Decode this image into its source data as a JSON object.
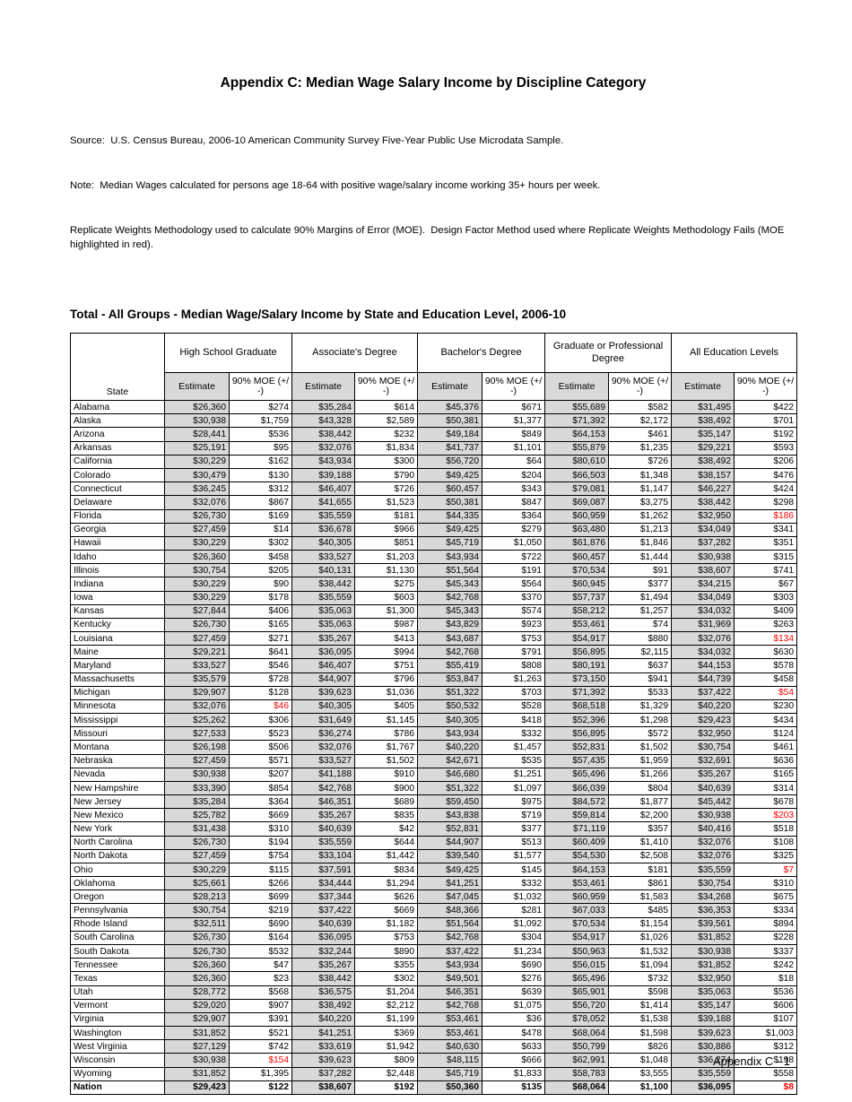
{
  "page": {
    "title": "Appendix C: Median Wage Salary Income by Discipline Category",
    "source_line": "Source:  U.S. Census Bureau, 2006-10 American Community Survey Five-Year Public Use Microdata Sample.",
    "note_line": "Note:  Median Wages calculated for persons age 18-64 with positive wage/salary income working 35+ hours per week.",
    "methodology_line": "Replicate Weights Methodology used to calculate 90% Margins of Error (MOE).  Design Factor Method used where Replicate Weights Methodology Fails (MOE highlighted in red).",
    "footer": "Appendix C - 1"
  },
  "colors": {
    "estimate_shading": "#d9d9d9",
    "failed_moe_red": "#ff0000"
  },
  "table": {
    "title": "Total - All Groups - Median Wage/Salary Income by State and Education Level, 2006-10",
    "state_header": "State",
    "group_headers": [
      "High School Graduate",
      "Associate's Degree",
      "Bachelor's Degree",
      "Graduate or Professional Degree",
      "All Education Levels"
    ],
    "sub_headers": {
      "estimate": "Estimate",
      "moe": "90% MOE (+/-)"
    },
    "rows": [
      {
        "state": "Alabama",
        "values": [
          "$26,360",
          "$274",
          "$35,284",
          "$614",
          "$45,376",
          "$671",
          "$55,689",
          "$582",
          "$31,495",
          "$422"
        ],
        "red": []
      },
      {
        "state": "Alaska",
        "values": [
          "$30,938",
          "$1,759",
          "$43,328",
          "$2,589",
          "$50,381",
          "$1,377",
          "$71,392",
          "$2,172",
          "$38,492",
          "$701"
        ],
        "red": []
      },
      {
        "state": "Arizona",
        "values": [
          "$28,441",
          "$536",
          "$38,442",
          "$232",
          "$49,184",
          "$849",
          "$64,153",
          "$461",
          "$35,147",
          "$192"
        ],
        "red": []
      },
      {
        "state": "Arkansas",
        "values": [
          "$25,191",
          "$95",
          "$32,076",
          "$1,834",
          "$41,737",
          "$1,101",
          "$55,879",
          "$1,235",
          "$29,221",
          "$593"
        ],
        "red": []
      },
      {
        "state": "California",
        "values": [
          "$30,229",
          "$162",
          "$43,934",
          "$300",
          "$56,720",
          "$64",
          "$80,610",
          "$726",
          "$38,492",
          "$206"
        ],
        "red": []
      },
      {
        "state": "Colorado",
        "values": [
          "$30,479",
          "$130",
          "$39,188",
          "$790",
          "$49,425",
          "$204",
          "$66,503",
          "$1,348",
          "$38,157",
          "$476"
        ],
        "red": []
      },
      {
        "state": "Connecticut",
        "values": [
          "$36,245",
          "$312",
          "$46,407",
          "$726",
          "$60,457",
          "$343",
          "$79,081",
          "$1,147",
          "$46,227",
          "$424"
        ],
        "red": []
      },
      {
        "state": "Delaware",
        "values": [
          "$32,076",
          "$867",
          "$41,655",
          "$1,523",
          "$50,381",
          "$847",
          "$69,087",
          "$3,275",
          "$38,442",
          "$298"
        ],
        "red": []
      },
      {
        "state": "Florida",
        "values": [
          "$26,730",
          "$169",
          "$35,559",
          "$181",
          "$44,335",
          "$364",
          "$60,959",
          "$1,262",
          "$32,950",
          "$186"
        ],
        "red": [
          9
        ]
      },
      {
        "state": "Georgia",
        "values": [
          "$27,459",
          "$14",
          "$36,678",
          "$966",
          "$49,425",
          "$279",
          "$63,480",
          "$1,213",
          "$34,049",
          "$341"
        ],
        "red": []
      },
      {
        "state": "Hawaii",
        "values": [
          "$30,229",
          "$302",
          "$40,305",
          "$851",
          "$45,719",
          "$1,050",
          "$61,876",
          "$1,846",
          "$37,282",
          "$351"
        ],
        "red": []
      },
      {
        "state": "Idaho",
        "values": [
          "$26,360",
          "$458",
          "$33,527",
          "$1,203",
          "$43,934",
          "$722",
          "$60,457",
          "$1,444",
          "$30,938",
          "$315"
        ],
        "red": []
      },
      {
        "state": "Illinois",
        "values": [
          "$30,754",
          "$205",
          "$40,131",
          "$1,130",
          "$51,564",
          "$191",
          "$70,534",
          "$91",
          "$38,607",
          "$741"
        ],
        "red": []
      },
      {
        "state": "Indiana",
        "values": [
          "$30,229",
          "$90",
          "$38,442",
          "$275",
          "$45,343",
          "$564",
          "$60,945",
          "$377",
          "$34,215",
          "$67"
        ],
        "red": []
      },
      {
        "state": "Iowa",
        "values": [
          "$30,229",
          "$178",
          "$35,559",
          "$603",
          "$42,768",
          "$370",
          "$57,737",
          "$1,494",
          "$34,049",
          "$303"
        ],
        "red": []
      },
      {
        "state": "Kansas",
        "values": [
          "$27,844",
          "$406",
          "$35,063",
          "$1,300",
          "$45,343",
          "$574",
          "$58,212",
          "$1,257",
          "$34,032",
          "$409"
        ],
        "red": []
      },
      {
        "state": "Kentucky",
        "values": [
          "$26,730",
          "$165",
          "$35,063",
          "$987",
          "$43,829",
          "$923",
          "$53,461",
          "$74",
          "$31,969",
          "$263"
        ],
        "red": []
      },
      {
        "state": "Louisiana",
        "values": [
          "$27,459",
          "$271",
          "$35,267",
          "$413",
          "$43,687",
          "$753",
          "$54,917",
          "$880",
          "$32,076",
          "$134"
        ],
        "red": [
          9
        ]
      },
      {
        "state": "Maine",
        "values": [
          "$29,221",
          "$641",
          "$36,095",
          "$994",
          "$42,768",
          "$791",
          "$56,895",
          "$2,115",
          "$34,032",
          "$630"
        ],
        "red": []
      },
      {
        "state": "Maryland",
        "values": [
          "$33,527",
          "$546",
          "$46,407",
          "$751",
          "$55,419",
          "$808",
          "$80,191",
          "$637",
          "$44,153",
          "$578"
        ],
        "red": []
      },
      {
        "state": "Massachusetts",
        "values": [
          "$35,579",
          "$728",
          "$44,907",
          "$796",
          "$53,847",
          "$1,263",
          "$73,150",
          "$941",
          "$44,739",
          "$458"
        ],
        "red": []
      },
      {
        "state": "Michigan",
        "values": [
          "$29,907",
          "$128",
          "$39,623",
          "$1,036",
          "$51,322",
          "$703",
          "$71,392",
          "$533",
          "$37,422",
          "$54"
        ],
        "red": [
          9
        ]
      },
      {
        "state": "Minnesota",
        "values": [
          "$32,076",
          "$46",
          "$40,305",
          "$405",
          "$50,532",
          "$528",
          "$68,518",
          "$1,329",
          "$40,220",
          "$230"
        ],
        "red": [
          1
        ]
      },
      {
        "state": "Mississippi",
        "values": [
          "$25,262",
          "$306",
          "$31,649",
          "$1,145",
          "$40,305",
          "$418",
          "$52,396",
          "$1,298",
          "$29,423",
          "$434"
        ],
        "red": []
      },
      {
        "state": "Missouri",
        "values": [
          "$27,533",
          "$523",
          "$36,274",
          "$786",
          "$43,934",
          "$332",
          "$56,895",
          "$572",
          "$32,950",
          "$124"
        ],
        "red": []
      },
      {
        "state": "Montana",
        "values": [
          "$26,198",
          "$506",
          "$32,076",
          "$1,767",
          "$40,220",
          "$1,457",
          "$52,831",
          "$1,502",
          "$30,754",
          "$461"
        ],
        "red": []
      },
      {
        "state": "Nebraska",
        "values": [
          "$27,459",
          "$571",
          "$33,527",
          "$1,502",
          "$42,671",
          "$535",
          "$57,435",
          "$1,959",
          "$32,691",
          "$636"
        ],
        "red": []
      },
      {
        "state": "Nevada",
        "values": [
          "$30,938",
          "$207",
          "$41,188",
          "$910",
          "$46,680",
          "$1,251",
          "$65,496",
          "$1,266",
          "$35,267",
          "$165"
        ],
        "red": []
      },
      {
        "state": "New Hampshire",
        "values": [
          "$33,390",
          "$854",
          "$42,768",
          "$900",
          "$51,322",
          "$1,097",
          "$66,039",
          "$804",
          "$40,639",
          "$314"
        ],
        "red": []
      },
      {
        "state": "New Jersey",
        "values": [
          "$35,284",
          "$364",
          "$46,351",
          "$689",
          "$59,450",
          "$975",
          "$84,572",
          "$1,877",
          "$45,442",
          "$678"
        ],
        "red": []
      },
      {
        "state": "New Mexico",
        "values": [
          "$25,782",
          "$669",
          "$35,267",
          "$835",
          "$43,838",
          "$719",
          "$59,814",
          "$2,200",
          "$30,938",
          "$203"
        ],
        "red": [
          9
        ]
      },
      {
        "state": "New York",
        "values": [
          "$31,438",
          "$310",
          "$40,639",
          "$42",
          "$52,831",
          "$377",
          "$71,119",
          "$357",
          "$40,416",
          "$518"
        ],
        "red": []
      },
      {
        "state": "North Carolina",
        "values": [
          "$26,730",
          "$194",
          "$35,559",
          "$644",
          "$44,907",
          "$513",
          "$60,409",
          "$1,410",
          "$32,076",
          "$108"
        ],
        "red": []
      },
      {
        "state": "North Dakota",
        "values": [
          "$27,459",
          "$754",
          "$33,104",
          "$1,442",
          "$39,540",
          "$1,577",
          "$54,530",
          "$2,508",
          "$32,076",
          "$325"
        ],
        "red": []
      },
      {
        "state": "Ohio",
        "values": [
          "$30,229",
          "$115",
          "$37,591",
          "$834",
          "$49,425",
          "$145",
          "$64,153",
          "$181",
          "$35,559",
          "$7"
        ],
        "red": [
          9
        ]
      },
      {
        "state": "Oklahoma",
        "values": [
          "$25,661",
          "$266",
          "$34,444",
          "$1,294",
          "$41,251",
          "$332",
          "$53,461",
          "$861",
          "$30,754",
          "$310"
        ],
        "red": []
      },
      {
        "state": "Oregon",
        "values": [
          "$28,213",
          "$699",
          "$37,344",
          "$626",
          "$47,045",
          "$1,032",
          "$60,959",
          "$1,583",
          "$34,268",
          "$675"
        ],
        "red": []
      },
      {
        "state": "Pennsylvania",
        "values": [
          "$30,754",
          "$219",
          "$37,422",
          "$669",
          "$48,366",
          "$281",
          "$67,033",
          "$485",
          "$36,353",
          "$334"
        ],
        "red": []
      },
      {
        "state": "Rhode Island",
        "values": [
          "$32,511",
          "$690",
          "$40,639",
          "$1,182",
          "$51,564",
          "$1,092",
          "$70,534",
          "$1,154",
          "$39,561",
          "$894"
        ],
        "red": []
      },
      {
        "state": "South Carolina",
        "values": [
          "$26,730",
          "$164",
          "$36,095",
          "$753",
          "$42,768",
          "$304",
          "$54,917",
          "$1,026",
          "$31,852",
          "$228"
        ],
        "red": []
      },
      {
        "state": "South Dakota",
        "values": [
          "$26,730",
          "$532",
          "$32,244",
          "$890",
          "$37,422",
          "$1,234",
          "$50,963",
          "$1,532",
          "$30,938",
          "$337"
        ],
        "red": []
      },
      {
        "state": "Tennessee",
        "values": [
          "$26,360",
          "$47",
          "$35,267",
          "$355",
          "$43,934",
          "$690",
          "$56,015",
          "$1,094",
          "$31,852",
          "$242"
        ],
        "red": []
      },
      {
        "state": "Texas",
        "values": [
          "$26,360",
          "$23",
          "$38,442",
          "$302",
          "$49,501",
          "$276",
          "$65,496",
          "$732",
          "$32,950",
          "$18"
        ],
        "red": []
      },
      {
        "state": "Utah",
        "values": [
          "$28,772",
          "$568",
          "$36,575",
          "$1,204",
          "$46,351",
          "$639",
          "$65,901",
          "$598",
          "$35,063",
          "$536"
        ],
        "red": []
      },
      {
        "state": "Vermont",
        "values": [
          "$29,020",
          "$907",
          "$38,492",
          "$2,212",
          "$42,768",
          "$1,075",
          "$56,720",
          "$1,414",
          "$35,147",
          "$606"
        ],
        "red": []
      },
      {
        "state": "Virginia",
        "values": [
          "$29,907",
          "$391",
          "$40,220",
          "$1,199",
          "$53,461",
          "$36",
          "$78,052",
          "$1,538",
          "$39,188",
          "$107"
        ],
        "red": []
      },
      {
        "state": "Washington",
        "values": [
          "$31,852",
          "$521",
          "$41,251",
          "$369",
          "$53,461",
          "$478",
          "$68,064",
          "$1,598",
          "$39,623",
          "$1,003"
        ],
        "red": []
      },
      {
        "state": "West Virginia",
        "values": [
          "$27,129",
          "$742",
          "$33,619",
          "$1,942",
          "$40,630",
          "$633",
          "$50,799",
          "$826",
          "$30,886",
          "$312"
        ],
        "red": []
      },
      {
        "state": "Wisconsin",
        "values": [
          "$30,938",
          "$154",
          "$39,623",
          "$809",
          "$48,115",
          "$666",
          "$62,991",
          "$1,048",
          "$36,274",
          "$198"
        ],
        "red": [
          1
        ]
      },
      {
        "state": "Wyoming",
        "values": [
          "$31,852",
          "$1,395",
          "$37,282",
          "$2,448",
          "$45,719",
          "$1,833",
          "$58,783",
          "$3,555",
          "$35,559",
          "$558"
        ],
        "red": []
      },
      {
        "state": "Nation",
        "bold": true,
        "values": [
          "$29,423",
          "$122",
          "$38,607",
          "$192",
          "$50,360",
          "$135",
          "$68,064",
          "$1,100",
          "$36,095",
          "$8"
        ],
        "red": [
          9
        ]
      }
    ]
  }
}
